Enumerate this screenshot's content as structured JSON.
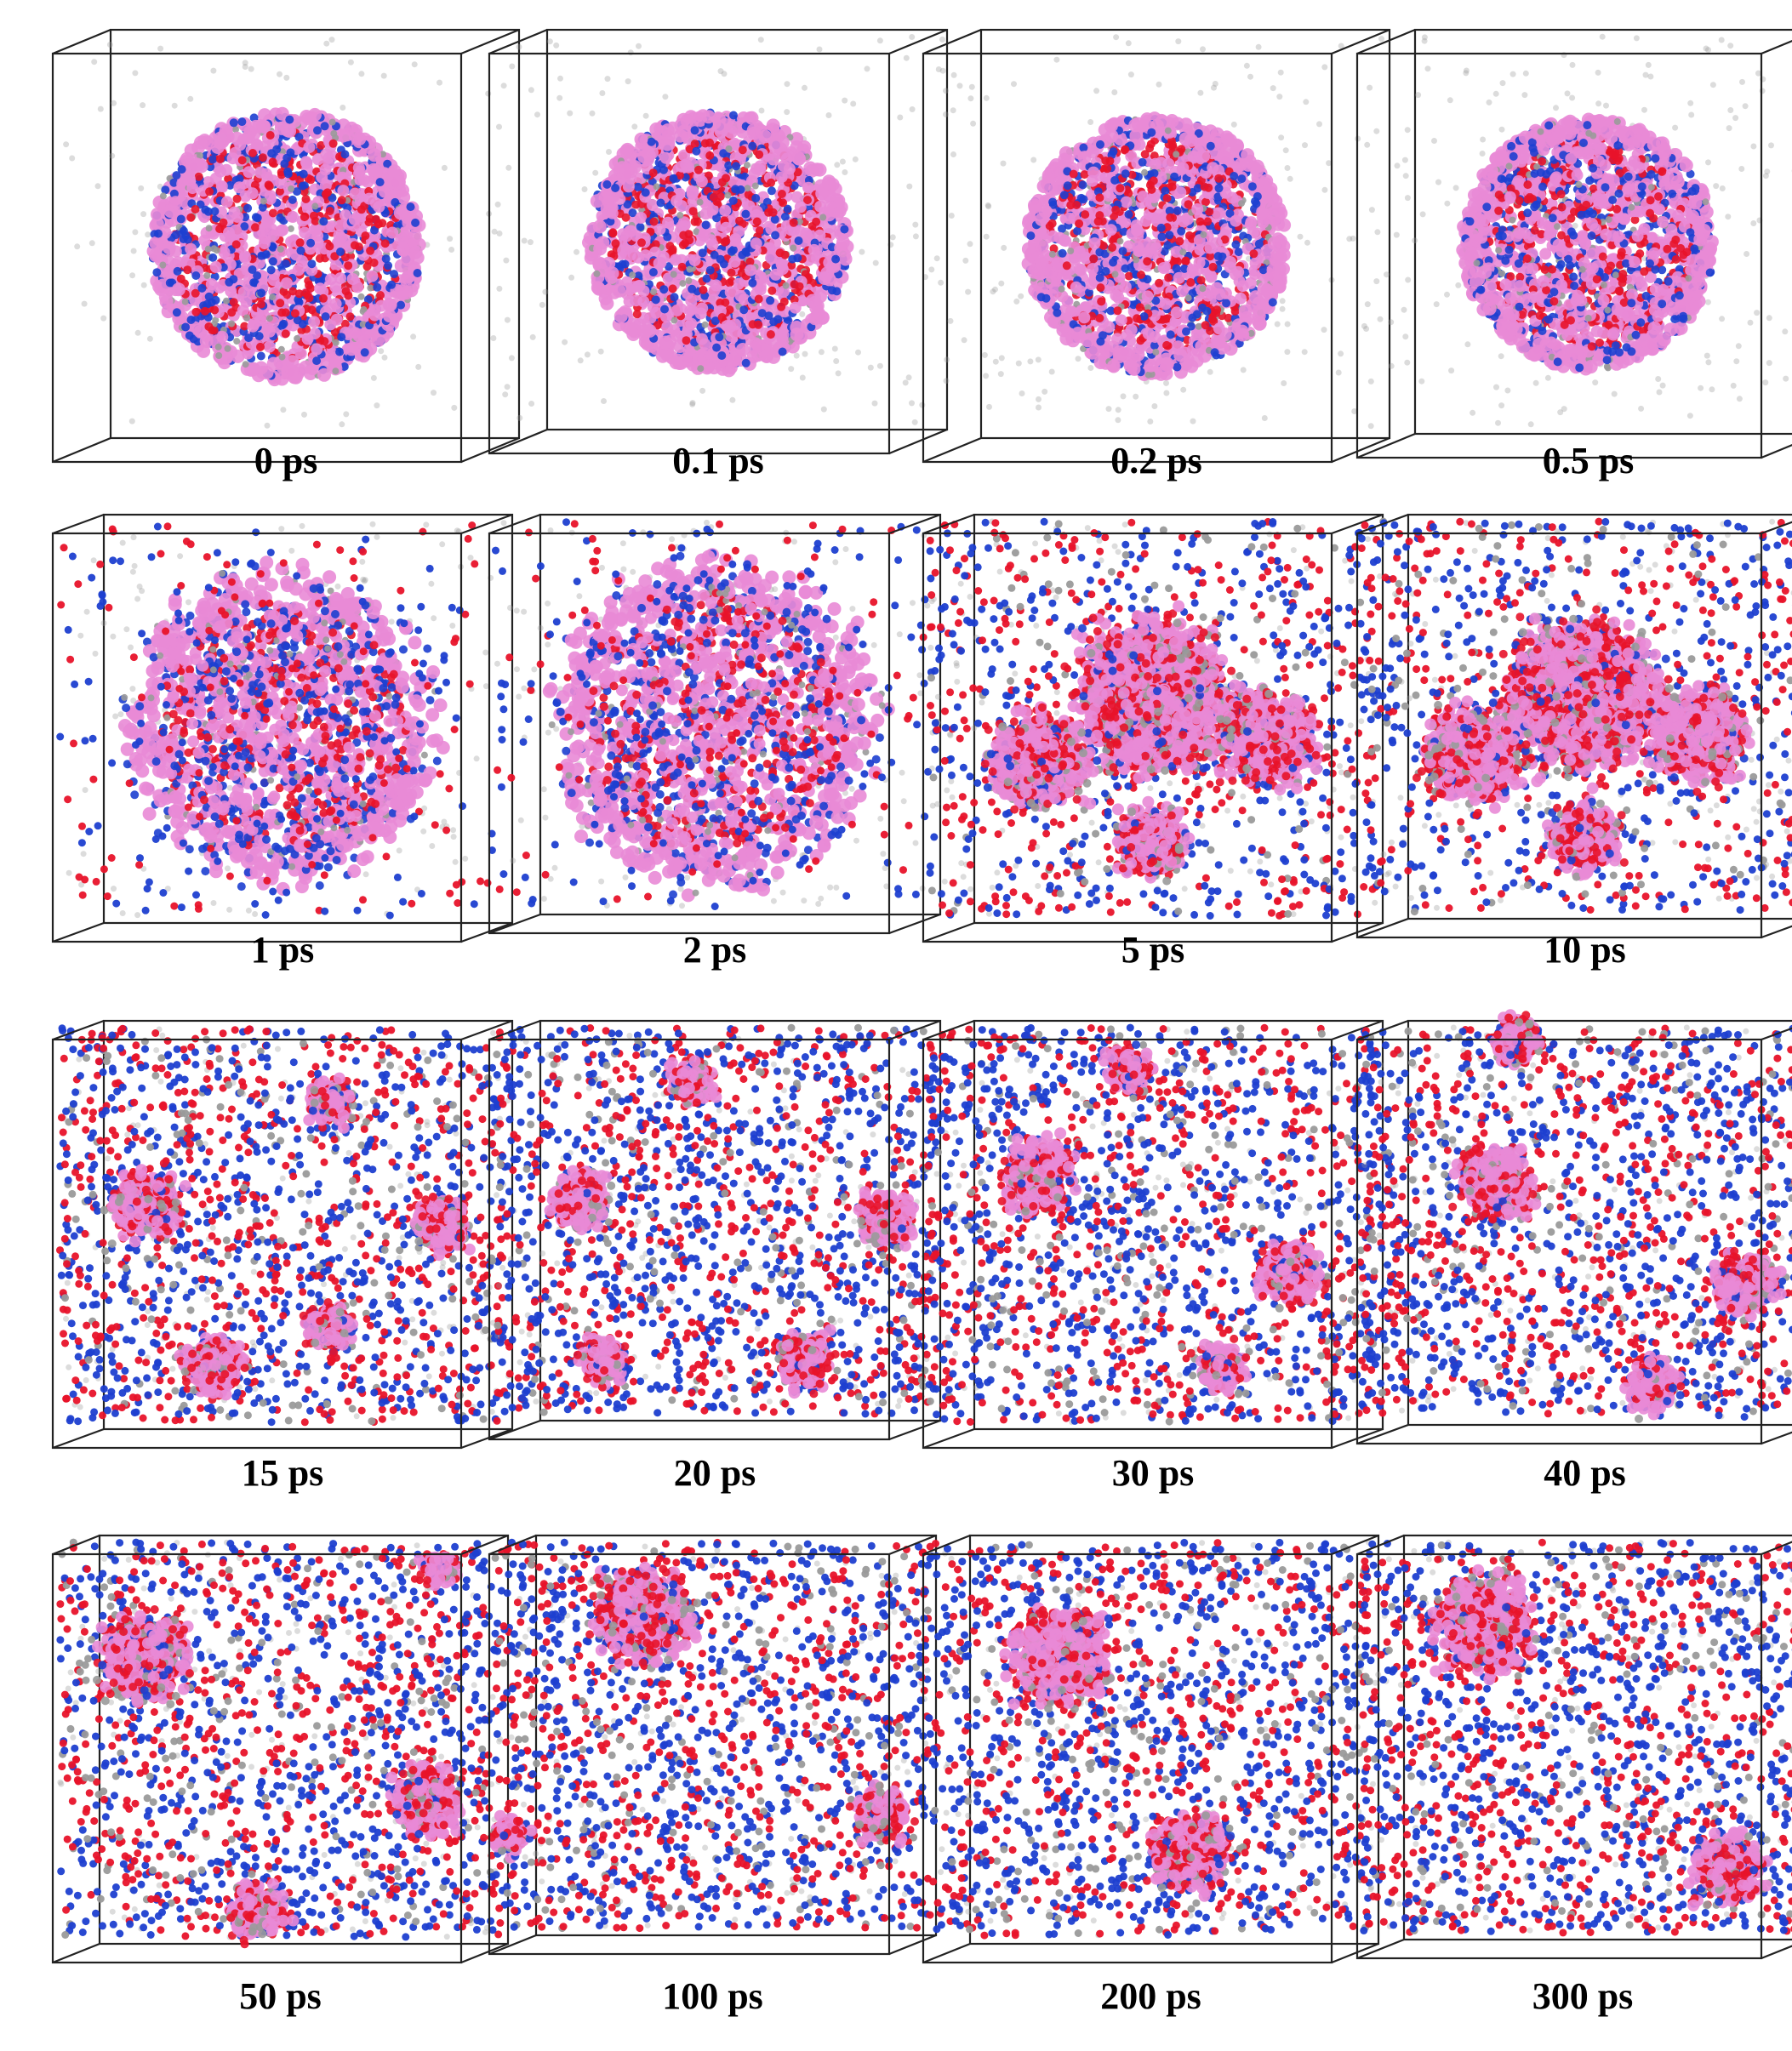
{
  "figure": {
    "panels": [
      {
        "label": "0 ps",
        "phase": "sphere"
      },
      {
        "label": "0.1 ps",
        "phase": "sphere"
      },
      {
        "label": "0.2 ps",
        "phase": "sphere"
      },
      {
        "label": "0.5 ps",
        "phase": "sphere"
      },
      {
        "label": "1 ps",
        "phase": "expanding"
      },
      {
        "label": "2 ps",
        "phase": "expanding"
      },
      {
        "label": "5 ps",
        "phase": "fragmenting"
      },
      {
        "label": "10 ps",
        "phase": "fragmenting"
      },
      {
        "label": "15 ps",
        "phase": "dispersed"
      },
      {
        "label": "20 ps",
        "phase": "dispersed"
      },
      {
        "label": "30 ps",
        "phase": "dispersed"
      },
      {
        "label": "40 ps",
        "phase": "dispersed"
      },
      {
        "label": "50 ps",
        "phase": "clustered"
      },
      {
        "label": "100 ps",
        "phase": "clustered"
      },
      {
        "label": "200 ps",
        "phase": "clustered"
      },
      {
        "label": "300 ps",
        "phase": "clustered"
      }
    ],
    "colors": {
      "pink": "#e98ad6",
      "red": "#e8132a",
      "blue": "#1d3fd0",
      "grey": "#9a9a9a",
      "box_edge": "#222222"
    }
  }
}
